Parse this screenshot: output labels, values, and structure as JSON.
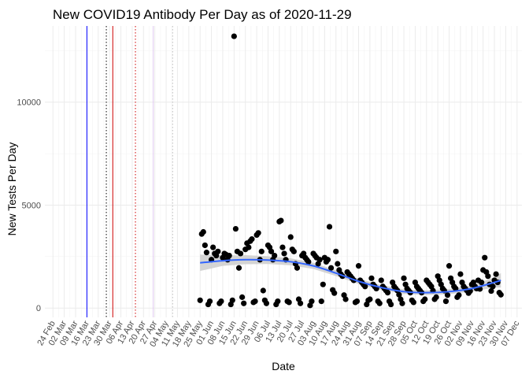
{
  "chart_data": {
    "type": "scatter",
    "title": "New COVID19 Antibody Per Day as of 2020-11-29",
    "xlabel": "Date",
    "ylabel": "New Tests Per Day",
    "xlim": [
      "2020-02-19",
      "2020-12-10"
    ],
    "ylim": [
      -450,
      13700
    ],
    "y_ticks": [
      0,
      5000,
      10000
    ],
    "y_tick_labels": [
      "0",
      "5000",
      "10000"
    ],
    "x_ticks": [
      "2020-02-24",
      "2020-03-02",
      "2020-03-09",
      "2020-03-16",
      "2020-03-23",
      "2020-03-30",
      "2020-04-06",
      "2020-04-13",
      "2020-04-20",
      "2020-04-27",
      "2020-05-04",
      "2020-05-11",
      "2020-05-18",
      "2020-05-25",
      "2020-06-01",
      "2020-06-08",
      "2020-06-15",
      "2020-06-22",
      "2020-06-29",
      "2020-07-06",
      "2020-07-13",
      "2020-07-20",
      "2020-07-27",
      "2020-08-03",
      "2020-08-10",
      "2020-08-17",
      "2020-08-24",
      "2020-08-31",
      "2020-09-07",
      "2020-09-14",
      "2020-09-21",
      "2020-09-28",
      "2020-10-05",
      "2020-10-12",
      "2020-10-19",
      "2020-10-26",
      "2020-11-02",
      "2020-11-09",
      "2020-11-16",
      "2020-11-23",
      "2020-11-30",
      "2020-12-07"
    ],
    "x_tick_labels": [
      "24 Feb",
      "02 Mar",
      "09 Mar",
      "16 Mar",
      "23 Mar",
      "30 Mar",
      "06 Apr",
      "13 Apr",
      "20 Apr",
      "27 Apr",
      "04 May",
      "11 May",
      "18 May",
      "25 May",
      "01 Jun",
      "08 Jun",
      "15 Jun",
      "22 Jun",
      "29 Jun",
      "06 Jul",
      "13 Jul",
      "20 Jul",
      "27 Jul",
      "03 Aug",
      "10 Aug",
      "17 Aug",
      "24 Aug",
      "31 Aug",
      "07 Sep",
      "14 Sep",
      "21 Sep",
      "28 Sep",
      "05 Oct",
      "12 Oct",
      "19 Oct",
      "26 Oct",
      "02 Nov",
      "09 Nov",
      "16 Nov",
      "23 Nov",
      "30 Nov",
      "07 Dec"
    ],
    "grid": true,
    "reference_lines": [
      {
        "date": "2020-03-16",
        "color": "#0000ff",
        "style": "solid"
      },
      {
        "date": "2020-03-28",
        "color": "#000000",
        "style": "dotted"
      },
      {
        "date": "2020-04-01",
        "color": "#cc0000",
        "style": "solid"
      },
      {
        "date": "2020-04-15",
        "color": "#cc0000",
        "style": "dotted"
      },
      {
        "date": "2020-04-26",
        "color": "#e0c8f0",
        "style": "solid"
      },
      {
        "date": "2020-05-08",
        "color": "#bdbdbd",
        "style": "dotted"
      }
    ],
    "points_color": "#000000",
    "points": [
      {
        "x": "2020-05-25",
        "y": 380
      },
      {
        "x": "2020-05-26",
        "y": 3600
      },
      {
        "x": "2020-05-27",
        "y": 3700
      },
      {
        "x": "2020-05-28",
        "y": 3050
      },
      {
        "x": "2020-05-29",
        "y": 2700
      },
      {
        "x": "2020-05-30",
        "y": 180
      },
      {
        "x": "2020-05-31",
        "y": 330
      },
      {
        "x": "2020-06-01",
        "y": 2350
      },
      {
        "x": "2020-06-02",
        "y": 2950
      },
      {
        "x": "2020-06-03",
        "y": 2650
      },
      {
        "x": "2020-06-04",
        "y": 2550
      },
      {
        "x": "2020-06-05",
        "y": 2750
      },
      {
        "x": "2020-06-06",
        "y": 230
      },
      {
        "x": "2020-06-07",
        "y": 330
      },
      {
        "x": "2020-06-08",
        "y": 2450
      },
      {
        "x": "2020-06-09",
        "y": 2650
      },
      {
        "x": "2020-06-10",
        "y": 2600
      },
      {
        "x": "2020-06-11",
        "y": 2350
      },
      {
        "x": "2020-06-12",
        "y": 2550
      },
      {
        "x": "2020-06-13",
        "y": 180
      },
      {
        "x": "2020-06-14",
        "y": 380
      },
      {
        "x": "2020-06-15",
        "y": 13200
      },
      {
        "x": "2020-06-16",
        "y": 3850
      },
      {
        "x": "2020-06-17",
        "y": 2750
      },
      {
        "x": "2020-06-18",
        "y": 1950
      },
      {
        "x": "2020-06-19",
        "y": 2650
      },
      {
        "x": "2020-06-20",
        "y": 530
      },
      {
        "x": "2020-06-21",
        "y": 230
      },
      {
        "x": "2020-06-22",
        "y": 2850
      },
      {
        "x": "2020-06-23",
        "y": 3150
      },
      {
        "x": "2020-06-24",
        "y": 2950
      },
      {
        "x": "2020-06-25",
        "y": 3250
      },
      {
        "x": "2020-06-26",
        "y": 3350
      },
      {
        "x": "2020-06-27",
        "y": 280
      },
      {
        "x": "2020-06-28",
        "y": 330
      },
      {
        "x": "2020-06-29",
        "y": 3550
      },
      {
        "x": "2020-06-30",
        "y": 3650
      },
      {
        "x": "2020-07-01",
        "y": 2350
      },
      {
        "x": "2020-07-02",
        "y": 2750
      },
      {
        "x": "2020-07-03",
        "y": 850
      },
      {
        "x": "2020-07-04",
        "y": 380
      },
      {
        "x": "2020-07-05",
        "y": 230
      },
      {
        "x": "2020-07-06",
        "y": 3050
      },
      {
        "x": "2020-07-07",
        "y": 2950
      },
      {
        "x": "2020-07-08",
        "y": 2750
      },
      {
        "x": "2020-07-09",
        "y": 2350
      },
      {
        "x": "2020-07-10",
        "y": 2550
      },
      {
        "x": "2020-07-11",
        "y": 180
      },
      {
        "x": "2020-07-12",
        "y": 330
      },
      {
        "x": "2020-07-13",
        "y": 4200
      },
      {
        "x": "2020-07-14",
        "y": 4250
      },
      {
        "x": "2020-07-15",
        "y": 2950
      },
      {
        "x": "2020-07-16",
        "y": 2650
      },
      {
        "x": "2020-07-17",
        "y": 2350
      },
      {
        "x": "2020-07-18",
        "y": 330
      },
      {
        "x": "2020-07-19",
        "y": 280
      },
      {
        "x": "2020-07-20",
        "y": 3450
      },
      {
        "x": "2020-07-21",
        "y": 2850
      },
      {
        "x": "2020-07-22",
        "y": 2750
      },
      {
        "x": "2020-07-23",
        "y": 2150
      },
      {
        "x": "2020-07-24",
        "y": 1950
      },
      {
        "x": "2020-07-25",
        "y": 430
      },
      {
        "x": "2020-07-26",
        "y": 230
      },
      {
        "x": "2020-07-27",
        "y": 2550
      },
      {
        "x": "2020-07-28",
        "y": 2650
      },
      {
        "x": "2020-07-29",
        "y": 2450
      },
      {
        "x": "2020-07-30",
        "y": 2350
      },
      {
        "x": "2020-07-31",
        "y": 2250
      },
      {
        "x": "2020-08-01",
        "y": 130
      },
      {
        "x": "2020-08-02",
        "y": 330
      },
      {
        "x": "2020-08-03",
        "y": 2650
      },
      {
        "x": "2020-08-04",
        "y": 2550
      },
      {
        "x": "2020-08-05",
        "y": 2450
      },
      {
        "x": "2020-08-06",
        "y": 2150
      },
      {
        "x": "2020-08-07",
        "y": 2350
      },
      {
        "x": "2020-08-08",
        "y": 330
      },
      {
        "x": "2020-08-09",
        "y": 1150
      },
      {
        "x": "2020-08-10",
        "y": 2450
      },
      {
        "x": "2020-08-11",
        "y": 2250
      },
      {
        "x": "2020-08-12",
        "y": 2350
      },
      {
        "x": "2020-08-13",
        "y": 3950
      },
      {
        "x": "2020-08-14",
        "y": 1950
      },
      {
        "x": "2020-08-15",
        "y": 880
      },
      {
        "x": "2020-08-16",
        "y": 730
      },
      {
        "x": "2020-08-17",
        "y": 2750
      },
      {
        "x": "2020-08-18",
        "y": 2150
      },
      {
        "x": "2020-08-19",
        "y": 1850
      },
      {
        "x": "2020-08-20",
        "y": 1650
      },
      {
        "x": "2020-08-21",
        "y": 1550
      },
      {
        "x": "2020-08-22",
        "y": 630
      },
      {
        "x": "2020-08-23",
        "y": 430
      },
      {
        "x": "2020-08-24",
        "y": 1750
      },
      {
        "x": "2020-08-25",
        "y": 1650
      },
      {
        "x": "2020-08-26",
        "y": 1550
      },
      {
        "x": "2020-08-27",
        "y": 1450
      },
      {
        "x": "2020-08-28",
        "y": 1350
      },
      {
        "x": "2020-08-29",
        "y": 280
      },
      {
        "x": "2020-08-30",
        "y": 330
      },
      {
        "x": "2020-08-31",
        "y": 2050
      },
      {
        "x": "2020-09-01",
        "y": 1350
      },
      {
        "x": "2020-09-02",
        "y": 1250
      },
      {
        "x": "2020-09-03",
        "y": 1150
      },
      {
        "x": "2020-09-04",
        "y": 1050
      },
      {
        "x": "2020-09-05",
        "y": 180
      },
      {
        "x": "2020-09-06",
        "y": 380
      },
      {
        "x": "2020-09-07",
        "y": 430
      },
      {
        "x": "2020-09-08",
        "y": 1450
      },
      {
        "x": "2020-09-09",
        "y": 1150
      },
      {
        "x": "2020-09-10",
        "y": 1050
      },
      {
        "x": "2020-09-11",
        "y": 950
      },
      {
        "x": "2020-09-12",
        "y": 330
      },
      {
        "x": "2020-09-13",
        "y": 230
      },
      {
        "x": "2020-09-14",
        "y": 1350
      },
      {
        "x": "2020-09-15",
        "y": 1050
      },
      {
        "x": "2020-09-16",
        "y": 950
      },
      {
        "x": "2020-09-17",
        "y": 850
      },
      {
        "x": "2020-09-18",
        "y": 750
      },
      {
        "x": "2020-09-19",
        "y": 330
      },
      {
        "x": "2020-09-20",
        "y": 180
      },
      {
        "x": "2020-09-21",
        "y": 1250
      },
      {
        "x": "2020-09-22",
        "y": 1050
      },
      {
        "x": "2020-09-23",
        "y": 950
      },
      {
        "x": "2020-09-24",
        "y": 850
      },
      {
        "x": "2020-09-25",
        "y": 650
      },
      {
        "x": "2020-09-26",
        "y": 430
      },
      {
        "x": "2020-09-27",
        "y": 230
      },
      {
        "x": "2020-09-28",
        "y": 1450
      },
      {
        "x": "2020-09-29",
        "y": 1150
      },
      {
        "x": "2020-09-30",
        "y": 950
      },
      {
        "x": "2020-10-01",
        "y": 850
      },
      {
        "x": "2020-10-02",
        "y": 750
      },
      {
        "x": "2020-10-03",
        "y": 380
      },
      {
        "x": "2020-10-04",
        "y": 280
      },
      {
        "x": "2020-10-05",
        "y": 1250
      },
      {
        "x": "2020-10-06",
        "y": 1050
      },
      {
        "x": "2020-10-07",
        "y": 950
      },
      {
        "x": "2020-10-08",
        "y": 850
      },
      {
        "x": "2020-10-09",
        "y": 750
      },
      {
        "x": "2020-10-10",
        "y": 330
      },
      {
        "x": "2020-10-11",
        "y": 430
      },
      {
        "x": "2020-10-12",
        "y": 1350
      },
      {
        "x": "2020-10-13",
        "y": 1250
      },
      {
        "x": "2020-10-14",
        "y": 1150
      },
      {
        "x": "2020-10-15",
        "y": 1050
      },
      {
        "x": "2020-10-16",
        "y": 850
      },
      {
        "x": "2020-10-17",
        "y": 430
      },
      {
        "x": "2020-10-18",
        "y": 530
      },
      {
        "x": "2020-10-19",
        "y": 1550
      },
      {
        "x": "2020-10-20",
        "y": 1350
      },
      {
        "x": "2020-10-21",
        "y": 1150
      },
      {
        "x": "2020-10-22",
        "y": 950
      },
      {
        "x": "2020-10-23",
        "y": 850
      },
      {
        "x": "2020-10-24",
        "y": 330
      },
      {
        "x": "2020-10-25",
        "y": 630
      },
      {
        "x": "2020-10-26",
        "y": 2050
      },
      {
        "x": "2020-10-27",
        "y": 1450
      },
      {
        "x": "2020-10-28",
        "y": 1250
      },
      {
        "x": "2020-10-29",
        "y": 1050
      },
      {
        "x": "2020-10-30",
        "y": 950
      },
      {
        "x": "2020-10-31",
        "y": 530
      },
      {
        "x": "2020-11-01",
        "y": 630
      },
      {
        "x": "2020-11-02",
        "y": 1650
      },
      {
        "x": "2020-11-03",
        "y": 1250
      },
      {
        "x": "2020-11-04",
        "y": 1050
      },
      {
        "x": "2020-11-05",
        "y": 950
      },
      {
        "x": "2020-11-06",
        "y": 850
      },
      {
        "x": "2020-11-07",
        "y": 730
      },
      {
        "x": "2020-11-08",
        "y": 830
      },
      {
        "x": "2020-11-09",
        "y": 1150
      },
      {
        "x": "2020-11-10",
        "y": 1250
      },
      {
        "x": "2020-11-11",
        "y": 1050
      },
      {
        "x": "2020-11-12",
        "y": 950
      },
      {
        "x": "2020-11-13",
        "y": 1350
      },
      {
        "x": "2020-11-14",
        "y": 930
      },
      {
        "x": "2020-11-15",
        "y": 1250
      },
      {
        "x": "2020-11-16",
        "y": 1850
      },
      {
        "x": "2020-11-17",
        "y": 2450
      },
      {
        "x": "2020-11-18",
        "y": 1750
      },
      {
        "x": "2020-11-19",
        "y": 1550
      },
      {
        "x": "2020-11-20",
        "y": 1150
      },
      {
        "x": "2020-11-21",
        "y": 830
      },
      {
        "x": "2020-11-22",
        "y": 1050
      },
      {
        "x": "2020-11-23",
        "y": 1350
      },
      {
        "x": "2020-11-24",
        "y": 1650
      },
      {
        "x": "2020-11-25",
        "y": 1250
      },
      {
        "x": "2020-11-26",
        "y": 750
      },
      {
        "x": "2020-11-27",
        "y": 650
      }
    ],
    "smooth": {
      "color": "#3366ff",
      "band_color": "#cccccc",
      "x": [
        "2020-05-25",
        "2020-06-08",
        "2020-06-22",
        "2020-07-06",
        "2020-07-20",
        "2020-08-03",
        "2020-08-17",
        "2020-08-31",
        "2020-09-14",
        "2020-09-28",
        "2020-10-12",
        "2020-10-26",
        "2020-11-09",
        "2020-11-23",
        "2020-11-27"
      ],
      "y": [
        2200,
        2300,
        2350,
        2330,
        2250,
        2050,
        1700,
        1300,
        1000,
        800,
        750,
        800,
        950,
        1250,
        1350
      ],
      "lower": [
        1800,
        2050,
        2130,
        2140,
        2080,
        1900,
        1560,
        1170,
        880,
        690,
        640,
        680,
        800,
        1000,
        1000
      ],
      "upper": [
        2600,
        2550,
        2570,
        2520,
        2420,
        2200,
        1840,
        1430,
        1120,
        910,
        860,
        920,
        1100,
        1500,
        1700
      ]
    }
  }
}
